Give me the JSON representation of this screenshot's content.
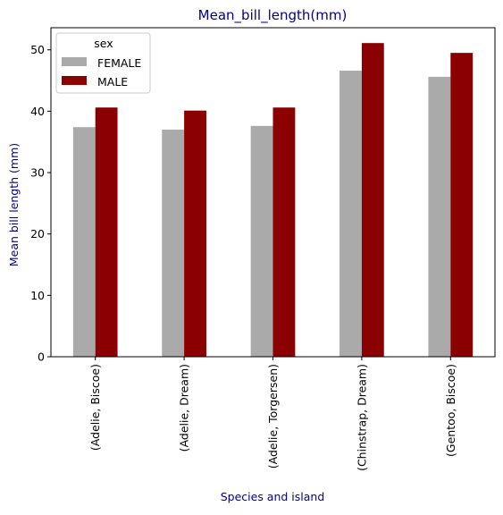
{
  "chart_data": {
    "type": "bar",
    "title": "Mean_bill_length(mm)",
    "xlabel": "Species and island",
    "ylabel": "Mean bill length (mm)",
    "categories": [
      "(Adelie, Biscoe)",
      "(Adelie, Dream)",
      "(Adelie, Torgersen)",
      "(Chinstrap, Dream)",
      "(Gentoo, Biscoe)"
    ],
    "series": [
      {
        "name": "FEMALE",
        "color": "#aaaaaa",
        "values": [
          37.4,
          37.0,
          37.6,
          46.6,
          45.6
        ]
      },
      {
        "name": "MALE",
        "color": "#8b0000",
        "values": [
          40.6,
          40.1,
          40.6,
          51.1,
          49.5
        ]
      }
    ],
    "ylim": [
      0,
      53.6
    ],
    "yticks": [
      0,
      10,
      20,
      30,
      40,
      50
    ],
    "legend": {
      "title": "sex",
      "placement": "top-left"
    },
    "grid": false,
    "title_color": "#00008b",
    "label_color": "#00008b"
  }
}
